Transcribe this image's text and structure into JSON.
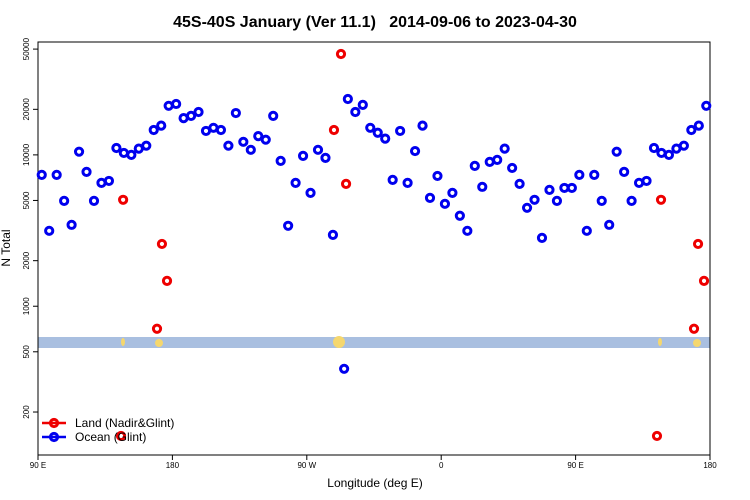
{
  "chart_data": {
    "type": "scatter",
    "title": "45S-40S January (Ver 11.1)   2014-09-06 to 2023-04-30",
    "x_label": "Longitude (deg E)",
    "y_label": "N Total",
    "log_y": true,
    "legend_position": "lower-left",
    "xlim": [
      90,
      540
    ],
    "ylim": [
      104,
      55700
    ],
    "xticks": [
      {
        "value": 90,
        "label": "90 E"
      },
      {
        "value": 180,
        "label": "180"
      },
      {
        "value": 270,
        "label": "90 W"
      },
      {
        "value": 360,
        "label": "0"
      },
      {
        "value": 450,
        "label": "90 E"
      },
      {
        "value": 540,
        "label": "180"
      }
    ],
    "yticks": [
      200,
      500,
      1000,
      2000,
      5000,
      10000,
      20000,
      50000
    ],
    "series": [
      {
        "name": "Land (Nadir&Glint)",
        "color": "#ee0000",
        "x": [
          145.6,
          147,
          169.7,
          173,
          176.4,
          288.2,
          292.9,
          296.3,
          504.5,
          507.2,
          529.3,
          532,
          536
        ],
        "values": [
          139,
          5050,
          710,
          2580,
          1470,
          14600,
          46400,
          6430,
          139,
          5050,
          710,
          2580,
          1470
        ]
      },
      {
        "name": "Ocean (Glint)",
        "color": "#0000ee",
        "x": [
          92.5,
          97.5,
          102.5,
          107.5,
          112.5,
          117.5,
          122.5,
          127.5,
          132.5,
          137.5,
          142.5,
          147.5,
          152.5,
          157.5,
          162.5,
          167.5,
          172.5,
          177.5,
          182.5,
          187.5,
          192.5,
          197.5,
          202.5,
          207.5,
          212.5,
          217.5,
          222.5,
          227.5,
          232.5,
          237.5,
          242.5,
          247.5,
          252.5,
          257.5,
          262.5,
          267.5,
          272.5,
          277.5,
          282.5,
          287.5,
          295,
          297.5,
          302.5,
          307.5,
          312.5,
          317.5,
          322.5,
          327.5,
          332.5,
          337.5,
          342.5,
          347.5,
          352.5,
          357.5,
          362.5,
          367.5,
          372.5,
          377.5,
          382.5,
          387.5,
          392.5,
          397.5,
          402.5,
          407.5,
          412.5,
          417.5,
          422.5,
          427.5,
          432.5,
          437.5,
          442.5,
          447.5,
          452.5,
          457.5,
          462.5,
          467.5,
          472.5,
          477.5,
          482.5,
          487.5,
          492.5,
          497.5,
          502.5,
          507.5,
          512.5,
          517.5,
          522.5,
          527.5,
          532.5,
          537.5
        ],
        "values": [
          7380,
          3150,
          7380,
          4970,
          3450,
          10500,
          7720,
          4970,
          6530,
          6730,
          11100,
          10300,
          10000,
          11000,
          11500,
          14600,
          15600,
          21100,
          21700,
          17500,
          18100,
          19200,
          14400,
          15100,
          14600,
          11500,
          18900,
          12200,
          10800,
          13300,
          12600,
          18100,
          9130,
          3400,
          6530,
          9850,
          5610,
          10800,
          9560,
          2960,
          386,
          23400,
          19200,
          21400,
          15100,
          14000,
          12800,
          6840,
          14400,
          6530,
          10600,
          15600,
          5200,
          7260,
          4750,
          5610,
          3960,
          3150,
          8460,
          6150,
          8990,
          9270,
          11000,
          8200,
          6430,
          4470,
          5050,
          2830,
          5870,
          4970,
          6050,
          6050,
          7380,
          3150,
          7380,
          4970,
          3450,
          10500,
          7720,
          4970,
          6530,
          6730,
          11100,
          10300,
          10000,
          11000,
          11500,
          14600,
          15600,
          21100
        ]
      }
    ]
  }
}
